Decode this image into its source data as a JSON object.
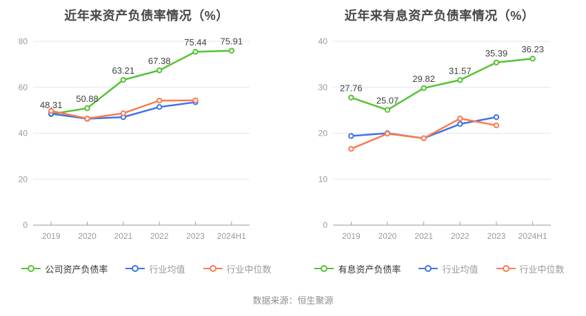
{
  "page": {
    "background": "#ffffff",
    "footer": "数据来源：恒生聚源"
  },
  "style": {
    "grid_color": "#dce7f2",
    "axis_color": "#999999",
    "tick_label_color": "#999999",
    "value_label_color": "#404040",
    "title_color": "#474747",
    "footer_color": "#8f8f8f",
    "legend_primary_color": "#333333",
    "legend_secondary_color": "#999999"
  },
  "chart_data": [
    {
      "type": "line",
      "title": "近年来资产负债率情况（%）",
      "categories": [
        "2019",
        "2020",
        "2021",
        "2022",
        "2023",
        "2024H1"
      ],
      "xlabel": "",
      "ylabel": "",
      "ylim": [
        0,
        80
      ],
      "ytick_interval": 20,
      "grid": true,
      "legend_position": "bottom",
      "series": [
        {
          "key": "company",
          "name": "公司资产负债率",
          "color": "#52c331",
          "point_labels": true,
          "values": [
            48.31,
            50.88,
            63.21,
            67.38,
            75.44,
            75.91
          ]
        },
        {
          "key": "industry-mean",
          "name": "行业均值",
          "color": "#4073e8",
          "point_labels": false,
          "values": [
            48.5,
            46.3,
            47.0,
            51.4,
            53.5,
            null
          ]
        },
        {
          "key": "industry-median",
          "name": "行业中位数",
          "color": "#fc7a50",
          "point_labels": false,
          "values": [
            49.7,
            46.4,
            48.7,
            54.2,
            54.3,
            null
          ]
        }
      ]
    },
    {
      "type": "line",
      "title": "近年来有息资产负债率情况（%）",
      "categories": [
        "2019",
        "2020",
        "2021",
        "2022",
        "2023",
        "2024H1"
      ],
      "xlabel": "",
      "ylabel": "",
      "ylim": [
        0,
        40
      ],
      "ytick_interval": 10,
      "grid": true,
      "legend_position": "bottom",
      "series": [
        {
          "key": "company-interest",
          "name": "有息资产负债率",
          "color": "#52c331",
          "point_labels": true,
          "values": [
            27.76,
            25.07,
            29.82,
            31.57,
            35.39,
            36.23
          ]
        },
        {
          "key": "industry-mean",
          "name": "行业均值",
          "color": "#4073e8",
          "point_labels": false,
          "values": [
            19.4,
            20.0,
            18.9,
            22.0,
            23.5,
            null
          ]
        },
        {
          "key": "industry-median",
          "name": "行业中位数",
          "color": "#fc7a50",
          "point_labels": false,
          "values": [
            16.6,
            19.9,
            18.9,
            23.2,
            21.7,
            null
          ]
        }
      ]
    }
  ]
}
